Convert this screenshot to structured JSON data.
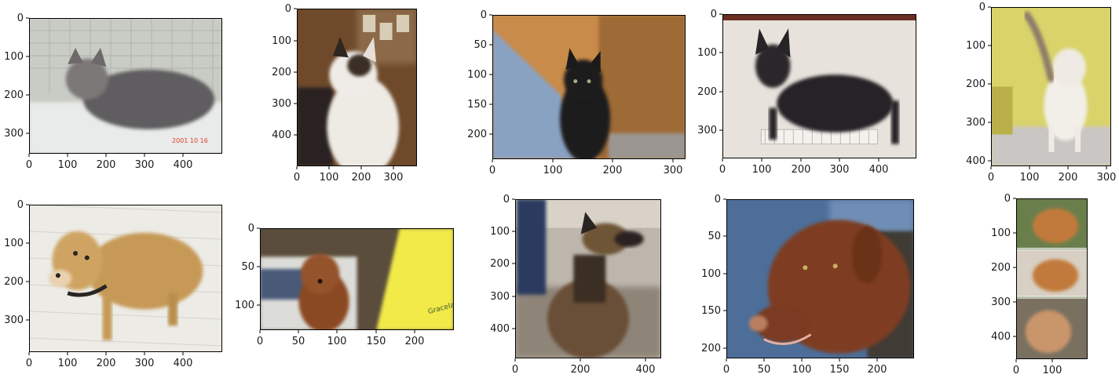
{
  "figure": {
    "panels": [
      {
        "id": "cat-1",
        "subject": "gray tabby cat lying on a white shelf in a cage",
        "x_ticks": [
          "0",
          "100",
          "200",
          "300",
          "400"
        ],
        "y_ticks": [
          "0",
          "100",
          "200",
          "300"
        ],
        "overlay_text": "2001 10 16",
        "palette": {
          "bg": "#c9ccc4",
          "mid": "#8d8a86",
          "subject": "#5f5d5e",
          "accent": "#e8ebe9"
        }
      },
      {
        "id": "cat-2",
        "subject": "white kitten with black-and-tan patches, photos on wall",
        "x_ticks": [
          "0",
          "100",
          "200",
          "300"
        ],
        "y_ticks": [
          "0",
          "100",
          "200",
          "300",
          "400"
        ],
        "palette": {
          "bg": "#6e4a2a",
          "mid": "#4a3422",
          "subject": "#eeeae4",
          "accent": "#2b2420"
        }
      },
      {
        "id": "cat-3",
        "subject": "black kitten sitting by a wooden cabinet and blue jeans",
        "x_ticks": [
          "0",
          "100",
          "200",
          "300"
        ],
        "y_ticks": [
          "0",
          "50",
          "100",
          "150",
          "200"
        ],
        "palette": {
          "bg": "#c98b4a",
          "mid": "#9e6a36",
          "subject": "#1c1a1a",
          "accent": "#8aa2c2"
        }
      },
      {
        "id": "cat-4",
        "subject": "black cat standing on a white rack",
        "x_ticks": [
          "0",
          "100",
          "200",
          "300",
          "400"
        ],
        "y_ticks": [
          "0",
          "100",
          "200",
          "300"
        ],
        "palette": {
          "bg": "#e7e3dc",
          "mid": "#cfcac2",
          "subject": "#262427",
          "accent": "#6b2e22"
        }
      },
      {
        "id": "cat-5",
        "subject": "white cat with tabby tail walking on a table, yellow wall",
        "x_ticks": [
          "0",
          "100",
          "200",
          "300"
        ],
        "y_ticks": [
          "0",
          "100",
          "200",
          "300",
          "400"
        ],
        "palette": {
          "bg": "#d9d36a",
          "mid": "#c9c6c4",
          "subject": "#f2efe9",
          "accent": "#8d7b6b"
        }
      },
      {
        "id": "dog-1",
        "subject": "tan small dog with dark collar on light floor",
        "x_ticks": [
          "0",
          "100",
          "200",
          "300",
          "400"
        ],
        "y_ticks": [
          "0",
          "100",
          "200",
          "300"
        ],
        "palette": {
          "bg": "#ecebe6",
          "mid": "#d9d5cc",
          "subject": "#c69a56",
          "accent": "#2a2422"
        }
      },
      {
        "id": "dog-2",
        "subject": "brown fluffy puppy held in front of a car and yellow shirt",
        "x_ticks": [
          "0",
          "50",
          "100",
          "150",
          "200"
        ],
        "y_ticks": [
          "0",
          "50",
          "100"
        ],
        "overlay_text": "Graceland Youth",
        "palette": {
          "bg": "#5a4d3c",
          "mid": "#dcdcd8",
          "subject": "#8a4a24",
          "accent": "#f1ea4a"
        }
      },
      {
        "id": "dog-3",
        "subject": "German shepherd on pavement beside a person in jeans",
        "x_ticks": [
          "0",
          "200",
          "400"
        ],
        "y_ticks": [
          "0",
          "100",
          "200",
          "300",
          "400"
        ],
        "palette": {
          "bg": "#bdb6ad",
          "mid": "#8e8478",
          "subject": "#6a5038",
          "accent": "#2a3a5e"
        }
      },
      {
        "id": "dog-4",
        "subject": "chocolate lab mix head close-up, jeans behind",
        "x_ticks": [
          "0",
          "50",
          "100",
          "150",
          "200"
        ],
        "y_ticks": [
          "0",
          "50",
          "100",
          "150",
          "200"
        ],
        "palette": {
          "bg": "#4c6e99",
          "mid": "#3f3a36",
          "subject": "#7e3d22",
          "accent": "#b98060"
        }
      },
      {
        "id": "dog-5",
        "subject": "collage of three golden retriever photos stacked vertically",
        "x_ticks": [
          "0",
          "100"
        ],
        "y_ticks": [
          "0",
          "100",
          "200",
          "300",
          "400"
        ],
        "palette": {
          "bg": "#7a8a5c",
          "mid": "#c8c2b6",
          "subject": "#c17a3a",
          "accent": "#5e3d22"
        }
      }
    ]
  }
}
